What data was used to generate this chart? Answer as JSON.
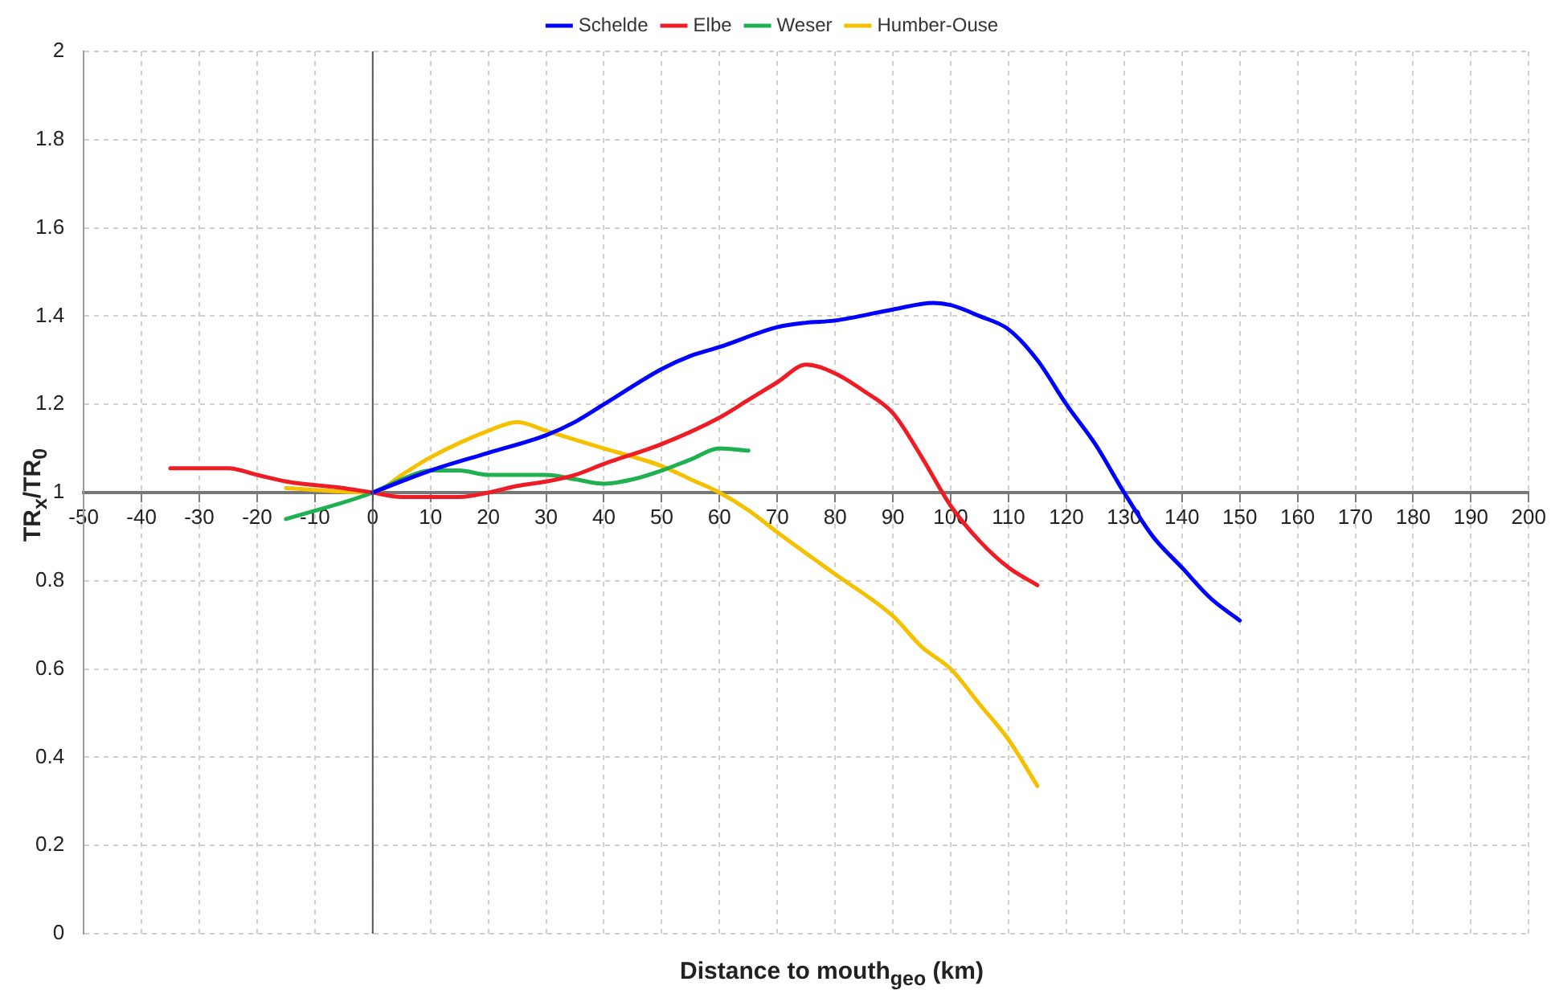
{
  "chart_data": {
    "type": "line",
    "xlabel": "Distance to mouth$_{geo}$ (km)",
    "ylabel": "TR$_{x}$/TR$_{0}$",
    "xlim": [
      -50,
      200
    ],
    "xticks": [
      -50,
      -40,
      -30,
      -20,
      -10,
      0,
      10,
      20,
      30,
      40,
      50,
      60,
      70,
      80,
      90,
      100,
      110,
      120,
      130,
      140,
      150,
      160,
      170,
      180,
      190,
      200
    ],
    "ylim": [
      0,
      2
    ],
    "yticks": [
      0,
      0.2,
      0.4,
      0.6,
      0.8,
      1,
      1.2,
      1.4,
      1.6,
      1.8,
      2
    ],
    "grid": true,
    "legend": "top",
    "marker": "none",
    "line_style": "solid",
    "series": [
      {
        "name": "Schelde",
        "color": "#0000ff",
        "x": [
          0,
          10,
          20,
          30,
          35,
          40,
          50,
          55,
          60,
          70,
          75,
          80,
          90,
          97,
          100,
          105,
          110,
          115,
          120,
          125,
          130,
          135,
          140,
          145,
          150
        ],
        "values": [
          1,
          1.05,
          1.09,
          1.13,
          1.16,
          1.2,
          1.28,
          1.31,
          1.33,
          1.375,
          1.385,
          1.39,
          1.415,
          1.43,
          1.425,
          1.4,
          1.37,
          1.3,
          1.2,
          1.11,
          1.0,
          0.9,
          0.83,
          0.76,
          0.71
        ]
      },
      {
        "name": "Elbe",
        "color": "#ee1c25",
        "x": [
          -35,
          -25,
          -20,
          -15,
          -5,
          0,
          5,
          15,
          20,
          25,
          30,
          35,
          40,
          50,
          60,
          65,
          70,
          75,
          80,
          85,
          90,
          95,
          100,
          105,
          110,
          115
        ],
        "values": [
          1.055,
          1.055,
          1.04,
          1.025,
          1.01,
          1,
          0.99,
          0.99,
          1.0,
          1.015,
          1.025,
          1.04,
          1.065,
          1.11,
          1.17,
          1.21,
          1.25,
          1.29,
          1.27,
          1.23,
          1.18,
          1.08,
          0.97,
          0.89,
          0.83,
          0.79
        ]
      },
      {
        "name": "Weser",
        "color": "#1fb050",
        "x": [
          -15,
          0,
          5,
          10,
          15,
          20,
          30,
          35,
          40,
          45,
          50,
          55,
          60,
          65
        ],
        "values": [
          0.94,
          1,
          1.03,
          1.05,
          1.05,
          1.04,
          1.04,
          1.03,
          1.02,
          1.03,
          1.05,
          1.075,
          1.1,
          1.095
        ]
      },
      {
        "name": "Humber-Ouse",
        "color": "#f5c000",
        "x": [
          -15,
          0,
          5,
          10,
          20,
          25,
          30,
          40,
          50,
          55,
          60,
          65,
          70,
          80,
          90,
          95,
          100,
          105,
          110,
          115
        ],
        "values": [
          1.01,
          1,
          1.04,
          1.08,
          1.14,
          1.16,
          1.14,
          1.1,
          1.06,
          1.03,
          1.0,
          0.96,
          0.91,
          0.815,
          0.72,
          0.65,
          0.6,
          0.52,
          0.44,
          0.335
        ]
      }
    ]
  }
}
